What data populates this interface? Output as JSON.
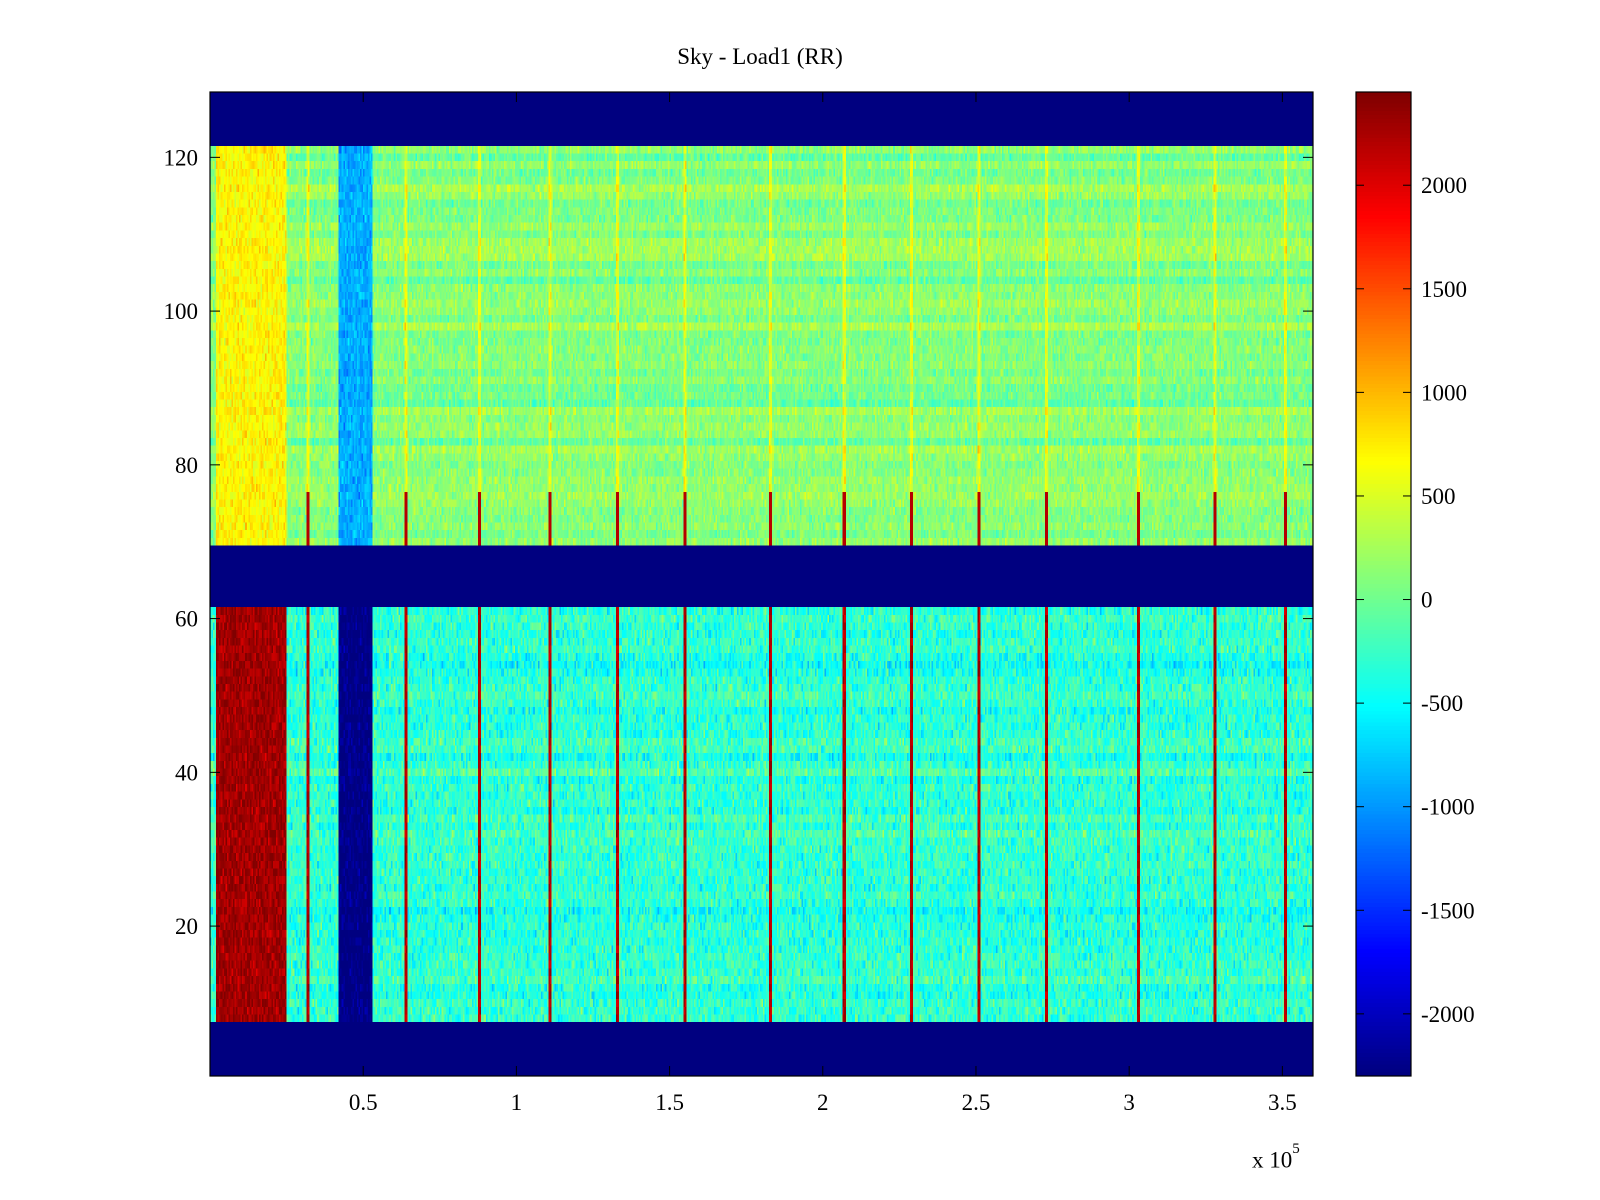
{
  "chart_data": {
    "type": "heatmap",
    "title": "Sky - Load1 (RR)",
    "xlabel": "",
    "ylabel": "",
    "x_exponent_label": {
      "base": "x 10",
      "exponent": "5"
    },
    "xlim": [
      0,
      360000
    ],
    "ylim": [
      0.5,
      128.5
    ],
    "x_ticks": [
      {
        "value": 50000,
        "label": "0.5"
      },
      {
        "value": 100000,
        "label": "1"
      },
      {
        "value": 150000,
        "label": "1.5"
      },
      {
        "value": 200000,
        "label": "2"
      },
      {
        "value": 250000,
        "label": "2.5"
      },
      {
        "value": 300000,
        "label": "3"
      },
      {
        "value": 350000,
        "label": "3.5"
      }
    ],
    "y_ticks": [
      {
        "value": 20,
        "label": "20"
      },
      {
        "value": 40,
        "label": "40"
      },
      {
        "value": 60,
        "label": "60"
      },
      {
        "value": 80,
        "label": "80"
      },
      {
        "value": 100,
        "label": "100"
      },
      {
        "value": 120,
        "label": "120"
      }
    ],
    "colorbar": {
      "colormap": "jet",
      "clim": [
        -2300,
        2450
      ],
      "ticks": [
        {
          "value": 2000,
          "label": "2000"
        },
        {
          "value": 1500,
          "label": "1500"
        },
        {
          "value": 1000,
          "label": "1000"
        },
        {
          "value": 500,
          "label": "500"
        },
        {
          "value": 0,
          "label": "0"
        },
        {
          "value": -500,
          "label": "-500"
        },
        {
          "value": -1000,
          "label": "-1000"
        },
        {
          "value": -1500,
          "label": "-1500"
        },
        {
          "value": -2000,
          "label": "-2000"
        }
      ]
    },
    "masked_channel_ranges": [
      [
        1,
        7
      ],
      [
        62,
        69
      ],
      [
        122,
        128
      ]
    ],
    "masked_value": -2300,
    "background_level": {
      "channels_70_121": 100,
      "channels_8_61": -300
    },
    "bands": [
      {
        "x_range": [
          2000,
          25000
        ],
        "channels": [
          8,
          61
        ],
        "value": 2300
      },
      {
        "x_range": [
          2000,
          25000
        ],
        "channels": [
          70,
          121
        ],
        "value": 700
      },
      {
        "x_range": [
          42000,
          53000
        ],
        "channels": [
          8,
          61
        ],
        "value": -2300
      },
      {
        "x_range": [
          42000,
          53000
        ],
        "channels": [
          70,
          121
        ],
        "value": -900
      }
    ],
    "spike_lines_x": [
      32000,
      64000,
      88000,
      111000,
      133000,
      155000,
      183000,
      207000,
      229000,
      251000,
      273000,
      303000,
      328000,
      351000
    ],
    "spike_value": 2200
  }
}
